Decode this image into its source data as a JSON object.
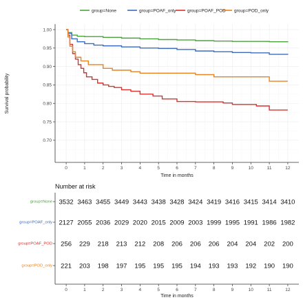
{
  "chart_data": [
    {
      "type": "line",
      "subtype": "kaplan-meier step",
      "title": "",
      "xlabel": "Time in months",
      "ylabel": "Survival probability",
      "xlim": [
        -0.6,
        12.6
      ],
      "ylim": [
        0.64,
        1.015
      ],
      "x_ticks": [
        0,
        1,
        2,
        3,
        4,
        5,
        6,
        7,
        8,
        9,
        10,
        11,
        12
      ],
      "y_ticks": [
        0.7,
        0.75,
        0.8,
        0.85,
        0.9,
        0.95,
        1.0
      ],
      "y_tick_labels": [
        "0.70",
        "0.75",
        "0.80",
        "0.85",
        "0.90",
        "0.95",
        "1.00"
      ],
      "grid": true,
      "legend_position": "top",
      "series": [
        {
          "name": "group=None",
          "color": "#4aa33b",
          "points": [
            [
              0,
              1.0
            ],
            [
              0.1,
              0.992
            ],
            [
              0.3,
              0.985
            ],
            [
              0.6,
              0.982
            ],
            [
              1,
              0.981
            ],
            [
              2,
              0.979
            ],
            [
              3,
              0.977
            ],
            [
              4,
              0.975
            ],
            [
              5,
              0.973
            ],
            [
              6,
              0.972
            ],
            [
              7,
              0.97
            ],
            [
              8,
              0.969
            ],
            [
              9,
              0.968
            ],
            [
              10,
              0.968
            ],
            [
              11,
              0.967
            ],
            [
              12,
              0.966
            ]
          ]
        },
        {
          "name": "group=POAF_only",
          "color": "#3b6bbd",
          "points": [
            [
              0,
              1.0
            ],
            [
              0.1,
              0.99
            ],
            [
              0.3,
              0.975
            ],
            [
              0.6,
              0.967
            ],
            [
              1,
              0.962
            ],
            [
              1.5,
              0.958
            ],
            [
              2,
              0.956
            ],
            [
              3,
              0.953
            ],
            [
              4,
              0.95
            ],
            [
              5,
              0.949
            ],
            [
              6,
              0.946
            ],
            [
              7,
              0.942
            ],
            [
              8,
              0.94
            ],
            [
              9,
              0.938
            ],
            [
              10,
              0.937
            ],
            [
              11,
              0.933
            ],
            [
              12,
              0.932
            ]
          ]
        },
        {
          "name": "group=POAF_POD",
          "color": "#d9302b",
          "points": [
            [
              0,
              1.0
            ],
            [
              0.1,
              0.985
            ],
            [
              0.2,
              0.96
            ],
            [
              0.35,
              0.935
            ],
            [
              0.5,
              0.92
            ],
            [
              0.65,
              0.905
            ],
            [
              0.8,
              0.895
            ],
            [
              0.95,
              0.883
            ],
            [
              1.1,
              0.872
            ],
            [
              1.4,
              0.865
            ],
            [
              1.7,
              0.855
            ],
            [
              2.0,
              0.85
            ],
            [
              2.3,
              0.846
            ],
            [
              2.6,
              0.843
            ],
            [
              3.0,
              0.837
            ],
            [
              3.5,
              0.833
            ],
            [
              4.0,
              0.825
            ],
            [
              4.7,
              0.82
            ],
            [
              5.2,
              0.812
            ],
            [
              6.0,
              0.805
            ],
            [
              7.0,
              0.804
            ],
            [
              8.5,
              0.801
            ],
            [
              9.0,
              0.797
            ],
            [
              10.3,
              0.793
            ],
            [
              11.0,
              0.782
            ],
            [
              12.0,
              0.782
            ]
          ]
        },
        {
          "name": "group=POD_only",
          "color": "#e8821e",
          "points": [
            [
              0,
              1.0
            ],
            [
              0.1,
              0.98
            ],
            [
              0.2,
              0.955
            ],
            [
              0.35,
              0.94
            ],
            [
              0.5,
              0.925
            ],
            [
              0.8,
              0.915
            ],
            [
              1.2,
              0.905
            ],
            [
              2.0,
              0.895
            ],
            [
              2.5,
              0.89
            ],
            [
              3.5,
              0.886
            ],
            [
              4.0,
              0.882
            ],
            [
              7.0,
              0.878
            ],
            [
              8.0,
              0.872
            ],
            [
              11.0,
              0.86
            ],
            [
              12.0,
              0.86
            ]
          ]
        }
      ]
    },
    {
      "type": "table",
      "title": "Number at risk",
      "xlabel": "Time in months",
      "x_ticks": [
        0,
        1,
        2,
        3,
        4,
        5,
        6,
        7,
        8,
        9,
        10,
        11,
        12
      ],
      "rows": [
        {
          "label": "group=None",
          "color": "#4aa33b",
          "values": [
            "3532",
            "3463",
            "3455",
            "3449",
            "3443",
            "3438",
            "3428",
            "3424",
            "3419",
            "3416",
            "3415",
            "3414",
            "3410"
          ]
        },
        {
          "label": "group=POAF_only",
          "color": "#3b6bbd",
          "values": [
            "2127",
            "2055",
            "2036",
            "2029",
            "2020",
            "2015",
            "2009",
            "2003",
            "1999",
            "1995",
            "1991",
            "1986",
            "1982"
          ]
        },
        {
          "label": "group=POAF_POD",
          "color": "#d9302b",
          "values": [
            "256",
            "229",
            "218",
            "213",
            "212",
            "208",
            "206",
            "206",
            "206",
            "204",
            "204",
            "202",
            "200"
          ]
        },
        {
          "label": "group=POD_only",
          "color": "#e8821e",
          "values": [
            "221",
            "203",
            "198",
            "197",
            "195",
            "195",
            "195",
            "194",
            "193",
            "193",
            "192",
            "190",
            "190"
          ]
        }
      ]
    }
  ]
}
